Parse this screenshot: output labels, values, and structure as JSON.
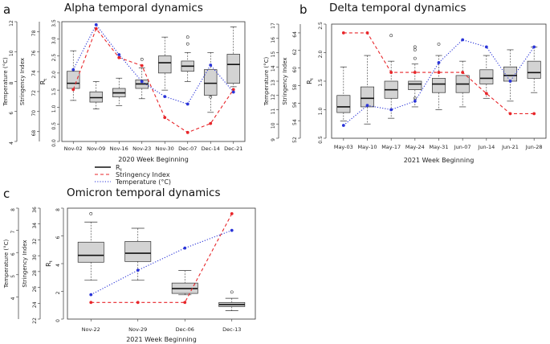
{
  "chart_data": [
    {
      "type": "box+line",
      "panel": "a",
      "title": "Alpha temporal dynamics",
      "xlabel": "2020 Week Beginning",
      "categories": [
        "Nov-02",
        "Nov-09",
        "Nov-16",
        "Nov-23",
        "Nov-30",
        "Dec-07",
        "Dec-14",
        "Dec-21"
      ],
      "axes": {
        "temperature": {
          "label": "Temperature (°C)",
          "ylim": [
            4,
            12
          ],
          "ticks": [
            4,
            6,
            8,
            10,
            12
          ]
        },
        "stringency": {
          "label": "Stringency Index",
          "ylim": [
            67,
            79
          ],
          "ticks": [
            68,
            70,
            72,
            74,
            76,
            78
          ]
        },
        "rt": {
          "label": "Rt",
          "ylim": [
            0,
            3.5
          ],
          "ticks": [
            0.0,
            0.5,
            1.0,
            1.5,
            2.0,
            2.5,
            3.0,
            3.5
          ]
        }
      },
      "boxes": [
        {
          "category": "Nov-02",
          "whislo": 1.2,
          "q1": 1.55,
          "med": 1.7,
          "q3": 2.05,
          "whishi": 2.65,
          "outliers": []
        },
        {
          "category": "Nov-09",
          "whislo": 0.95,
          "q1": 1.15,
          "med": 1.28,
          "q3": 1.45,
          "whishi": 1.75,
          "outliers": []
        },
        {
          "category": "Nov-16",
          "whislo": 1.05,
          "q1": 1.3,
          "med": 1.42,
          "q3": 1.55,
          "whishi": 1.85,
          "outliers": []
        },
        {
          "category": "Nov-23",
          "whislo": 1.25,
          "q1": 1.55,
          "med": 1.68,
          "q3": 1.8,
          "whishi": 2.15,
          "outliers": [
            2.4
          ]
        },
        {
          "category": "Nov-30",
          "whislo": 1.5,
          "q1": 2.0,
          "med": 2.3,
          "q3": 2.5,
          "whishi": 3.05,
          "outliers": []
        },
        {
          "category": "Dec-07",
          "whislo": 1.75,
          "q1": 2.05,
          "med": 2.2,
          "q3": 2.35,
          "whishi": 2.6,
          "outliers": [
            2.85,
            3.05
          ]
        },
        {
          "category": "Dec-14",
          "whislo": 0.85,
          "q1": 1.35,
          "med": 1.7,
          "q3": 2.1,
          "whishi": 2.6,
          "outliers": [
            1.3
          ]
        },
        {
          "category": "Dec-21",
          "whislo": 1.6,
          "q1": 1.7,
          "med": 2.25,
          "q3": 2.55,
          "whishi": 3.35,
          "outliers": []
        }
      ],
      "series": [
        {
          "name": "Stringency Index",
          "axis": "stringency",
          "style": "dashed",
          "color": "#e8262a",
          "values": [
            72.2,
            78.3,
            75.4,
            74.6,
            69.4,
            67.9,
            68.8,
            72.2
          ]
        },
        {
          "name": "Temperature (°C)",
          "axis": "temperature",
          "style": "dotted",
          "color": "#2a34d8",
          "values": [
            8.8,
            11.8,
            9.8,
            8.0,
            7.0,
            6.5,
            9.1,
            7.3
          ]
        }
      ],
      "legend": {
        "placement": "below-right",
        "entries": [
          "Rt",
          "Stringency Index",
          "Temperature (°C)"
        ]
      }
    },
    {
      "type": "box+line",
      "panel": "b",
      "title": "Delta temporal dynamics",
      "xlabel": "2021 Week Beginning",
      "categories": [
        "May-03",
        "May-10",
        "May-17",
        "May-24",
        "May-31",
        "Jun-07",
        "Jun-14",
        "Jun-21",
        "Jun-28"
      ],
      "axes": {
        "temperature": {
          "label": "Temperature (°C)",
          "ylim": [
            9,
            17
          ],
          "ticks": [
            9,
            10,
            11,
            12,
            13,
            14,
            15,
            16,
            17
          ]
        },
        "stringency": {
          "label": "Stringency Index",
          "ylim": [
            52,
            65
          ],
          "ticks": [
            52,
            54,
            56,
            58,
            60,
            62,
            64
          ]
        },
        "rt": {
          "label": "Rt",
          "ylim": [
            0.5,
            2.5
          ],
          "ticks": [
            0.5,
            1.0,
            1.5,
            2.0,
            2.5
          ]
        }
      },
      "boxes": [
        {
          "category": "May-03",
          "whislo": 0.8,
          "q1": 0.95,
          "med": 1.05,
          "q3": 1.25,
          "whishi": 1.75,
          "outliers": []
        },
        {
          "category": "May-10",
          "whislo": 0.75,
          "q1": 1.05,
          "med": 1.2,
          "q3": 1.4,
          "whishi": 1.95,
          "outliers": []
        },
        {
          "category": "May-17",
          "whislo": 0.85,
          "q1": 1.2,
          "med": 1.35,
          "q3": 1.5,
          "whishi": 1.85,
          "outliers": [
            2.3
          ]
        },
        {
          "category": "May-24",
          "whislo": 1.05,
          "q1": 1.35,
          "med": 1.45,
          "q3": 1.5,
          "whishi": 1.8,
          "outliers": [
            2.05,
            2.1,
            1.9,
            1.2
          ]
        },
        {
          "category": "May-31",
          "whislo": 1.0,
          "q1": 1.3,
          "med": 1.45,
          "q3": 1.55,
          "whishi": 1.95,
          "outliers": [
            2.15
          ]
        },
        {
          "category": "Jun-07",
          "whislo": 1.05,
          "q1": 1.3,
          "med": 1.45,
          "q3": 1.6,
          "whishi": 1.85,
          "outliers": []
        },
        {
          "category": "Jun-14",
          "whislo": 1.2,
          "q1": 1.45,
          "med": 1.55,
          "q3": 1.7,
          "whishi": 1.95,
          "outliers": []
        },
        {
          "category": "Jun-21",
          "whislo": 1.15,
          "q1": 1.5,
          "med": 1.6,
          "q3": 1.75,
          "whishi": 2.05,
          "outliers": []
        },
        {
          "category": "Jun-28",
          "whislo": 1.3,
          "q1": 1.55,
          "med": 1.65,
          "q3": 1.85,
          "whishi": 2.1,
          "outliers": []
        }
      ],
      "series": [
        {
          "name": "Stringency Index",
          "axis": "stringency",
          "style": "dashed",
          "color": "#e8262a",
          "values": [
            64,
            64,
            59.5,
            59.5,
            59.5,
            59.5,
            57.1,
            54.8,
            54.8
          ]
        },
        {
          "name": "Temperature (°C)",
          "axis": "temperature",
          "style": "dotted",
          "color": "#2a34d8",
          "values": [
            9.9,
            11.3,
            11.0,
            11.6,
            14.3,
            15.9,
            15.4,
            13.0,
            15.4
          ]
        }
      ]
    },
    {
      "type": "box+line",
      "panel": "c",
      "title": "Omicron temporal dynamics",
      "xlabel": "2021 Week Beginning",
      "categories": [
        "Nov-22",
        "Nov-29",
        "Dec-06",
        "Dec-13"
      ],
      "axes": {
        "temperature": {
          "label": "Temperature (°C)",
          "ylim": [
            3,
            8
          ],
          "ticks": [
            4,
            5,
            6,
            7,
            8
          ]
        },
        "stringency": {
          "label": "Stringency Index",
          "ylim": [
            22,
            36
          ],
          "ticks": [
            22,
            24,
            26,
            28,
            30,
            32,
            34,
            36
          ]
        },
        "rt": {
          "label": "Rt",
          "ylim": [
            0,
            8
          ],
          "ticks": [
            0,
            2,
            4,
            6,
            8
          ]
        }
      },
      "boxes": [
        {
          "category": "Nov-22",
          "whislo": 2.8,
          "q1": 4.1,
          "med": 4.6,
          "q3": 5.55,
          "whishi": 7.0,
          "outliers": [
            7.6
          ]
        },
        {
          "category": "Nov-29",
          "whislo": 2.8,
          "q1": 4.15,
          "med": 4.75,
          "q3": 5.6,
          "whishi": 6.55,
          "outliers": []
        },
        {
          "category": "Dec-06",
          "whislo": 1.75,
          "q1": 1.85,
          "med": 2.2,
          "q3": 2.6,
          "whishi": 3.5,
          "outliers": []
        },
        {
          "category": "Dec-13",
          "whislo": 0.6,
          "q1": 0.9,
          "med": 1.05,
          "q3": 1.2,
          "whishi": 1.5,
          "outliers": [
            1.95
          ]
        }
      ],
      "series": [
        {
          "name": "Stringency Index",
          "axis": "stringency",
          "style": "dashed",
          "color": "#e8262a",
          "values": [
            24.1,
            24.1,
            24.1,
            35.3
          ]
        },
        {
          "name": "Temperature (°C)",
          "axis": "temperature",
          "style": "dotted",
          "color": "#2a34d8",
          "values": [
            4.1,
            5.2,
            6.2,
            7.0
          ]
        }
      ]
    }
  ],
  "labels": {
    "panel_a": "a",
    "panel_b": "b",
    "panel_c": "c",
    "rt_main": "R",
    "rt_sub": "t"
  }
}
